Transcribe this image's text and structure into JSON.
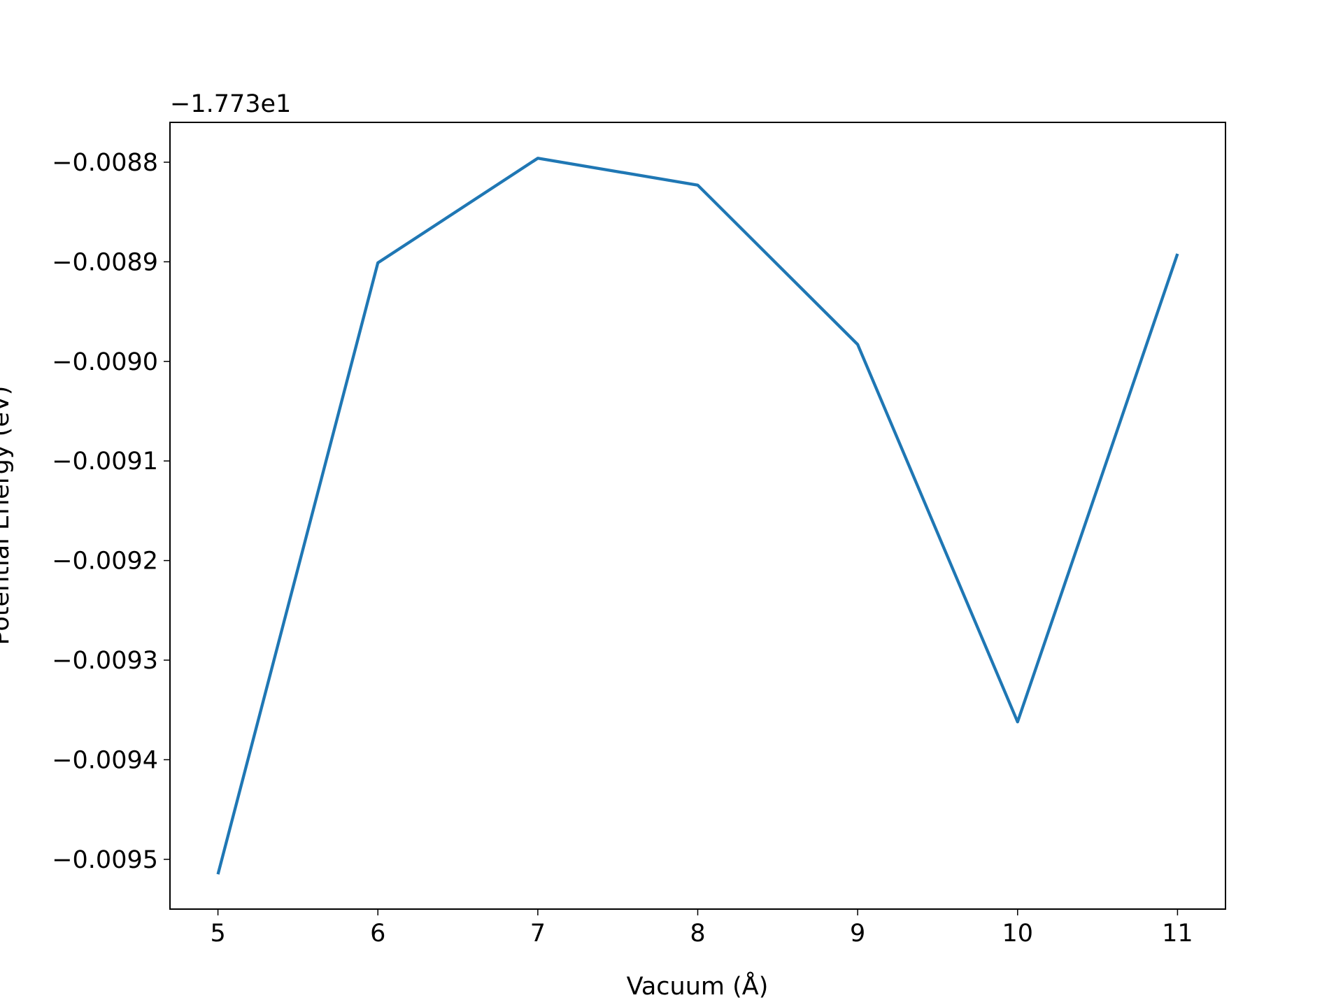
{
  "chart_data": {
    "type": "line",
    "offset_text": "−1.773e1",
    "x_label": "Vacuum (Å)",
    "y_label": "Potential Energy (eV)",
    "x": [
      5,
      6,
      7,
      8,
      9,
      10,
      11
    ],
    "series": [
      {
        "color": "#1f77b4",
        "values": [
          -0.009515,
          -0.008901,
          -0.008796,
          -0.008823,
          -0.008983,
          -0.009362,
          -0.008892
        ]
      }
    ],
    "xlim": [
      4.7,
      11.3
    ],
    "xticks": [
      5,
      6,
      7,
      8,
      9,
      10,
      11
    ],
    "ylim": [
      -0.00955,
      -0.00876
    ],
    "yticks": [
      {
        "value": -0.0095,
        "label": "−0.0095"
      },
      {
        "value": -0.0094,
        "label": "−0.0094"
      },
      {
        "value": -0.0093,
        "label": "−0.0093"
      },
      {
        "value": -0.0092,
        "label": "−0.0092"
      },
      {
        "value": -0.0091,
        "label": "−0.0091"
      },
      {
        "value": -0.009,
        "label": "−0.0090"
      },
      {
        "value": -0.0089,
        "label": "−0.0089"
      },
      {
        "value": -0.0088,
        "label": "−0.0088"
      }
    ],
    "grid": false
  }
}
